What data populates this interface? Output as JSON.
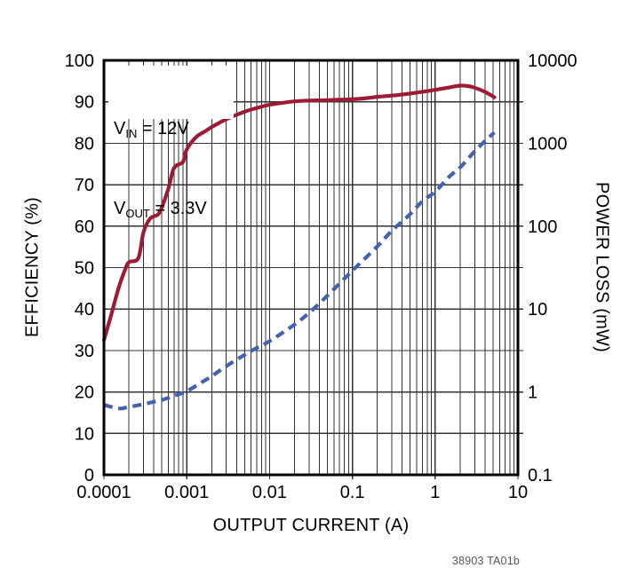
{
  "chart_data": {
    "type": "line",
    "title": "",
    "xlabel": "OUTPUT CURRENT (A)",
    "ylabel_left": "EFFICIENCY (%)",
    "ylabel_right": "POWER LOSS (mW)",
    "x_scale": "log",
    "x_range": [
      0.0001,
      10
    ],
    "y_left_scale": "linear",
    "y_left_range": [
      0,
      100
    ],
    "y_right_scale": "log",
    "y_right_range": [
      0.1,
      10000
    ],
    "grid": "on",
    "x_ticks": [
      "0.0001",
      "0.001",
      "0.01",
      "0.1",
      "1",
      "10"
    ],
    "y_left_ticks": [
      "100",
      "90",
      "80",
      "70",
      "60",
      "50",
      "40",
      "30",
      "20",
      "10",
      "0"
    ],
    "y_right_ticks": [
      "10000",
      "1000",
      "100",
      "10",
      "1",
      "0.1"
    ],
    "series": [
      {
        "name": "Efficiency",
        "axis": "left",
        "style": "solid",
        "color": "#9E1B34",
        "points": [
          [
            0.0001,
            32.5
          ],
          [
            0.00012,
            38
          ],
          [
            0.00015,
            45
          ],
          [
            0.00018,
            49.5
          ],
          [
            0.0002,
            51.3
          ],
          [
            0.00026,
            52.3
          ],
          [
            0.0003,
            58.5
          ],
          [
            0.00036,
            61.8
          ],
          [
            0.00045,
            62.8
          ],
          [
            0.0005,
            64.5
          ],
          [
            0.0006,
            69
          ],
          [
            0.0007,
            74
          ],
          [
            0.0009,
            75.5
          ],
          [
            0.001,
            78.5
          ],
          [
            0.0013,
            81.5
          ],
          [
            0.0017,
            83
          ],
          [
            0.002,
            83.9
          ],
          [
            0.003,
            85.8
          ],
          [
            0.005,
            87.6
          ],
          [
            0.007,
            88.5
          ],
          [
            0.01,
            89.3
          ],
          [
            0.015,
            89.8
          ],
          [
            0.02,
            90.1
          ],
          [
            0.03,
            90.3
          ],
          [
            0.05,
            90.4
          ],
          [
            0.07,
            90.5
          ],
          [
            0.1,
            90.6
          ],
          [
            0.15,
            90.9
          ],
          [
            0.2,
            91.2
          ],
          [
            0.3,
            91.5
          ],
          [
            0.5,
            92
          ],
          [
            0.7,
            92.4
          ],
          [
            1,
            92.9
          ],
          [
            1.5,
            93.5
          ],
          [
            2,
            93.9
          ],
          [
            2.5,
            93.8
          ],
          [
            3,
            93.4
          ],
          [
            4,
            92.4
          ],
          [
            5.2,
            91.1
          ]
        ]
      },
      {
        "name": "Power Loss",
        "axis": "right",
        "style": "dashed",
        "color": "#4363AE",
        "points": [
          [
            0.0001,
            0.7
          ],
          [
            0.00013,
            0.65
          ],
          [
            0.00016,
            0.63
          ],
          [
            0.0002,
            0.66
          ],
          [
            0.0003,
            0.71
          ],
          [
            0.0004,
            0.76
          ],
          [
            0.0005,
            0.8
          ],
          [
            0.0007,
            0.9
          ],
          [
            0.001,
            1.02
          ],
          [
            0.0015,
            1.3
          ],
          [
            0.002,
            1.55
          ],
          [
            0.003,
            2.05
          ],
          [
            0.005,
            2.8
          ],
          [
            0.007,
            3.4
          ],
          [
            0.01,
            4.1
          ],
          [
            0.02,
            6.5
          ],
          [
            0.03,
            9
          ],
          [
            0.05,
            14.5
          ],
          [
            0.1,
            29
          ],
          [
            0.2,
            57
          ],
          [
            0.3,
            88
          ],
          [
            0.5,
            140
          ],
          [
            0.7,
            200
          ],
          [
            1,
            260
          ],
          [
            1.5,
            400
          ],
          [
            2,
            510
          ],
          [
            3,
            800
          ],
          [
            4,
            1060
          ],
          [
            5.2,
            1350
          ]
        ]
      }
    ],
    "annotation": {
      "line1": {
        "pre": "V",
        "sub": "IN",
        "post": " = 12V"
      },
      "line2": {
        "pre": "V",
        "sub": "OUT",
        "post": " = 3.3V"
      }
    },
    "figure_label": "38903 TA01b",
    "colors": {
      "efficiency": "#9E1B34",
      "power_loss": "#4363AE",
      "grid": "#333333",
      "axis": "#000000",
      "background": "#FFFFFF",
      "figure_label_text": "#555555"
    }
  }
}
